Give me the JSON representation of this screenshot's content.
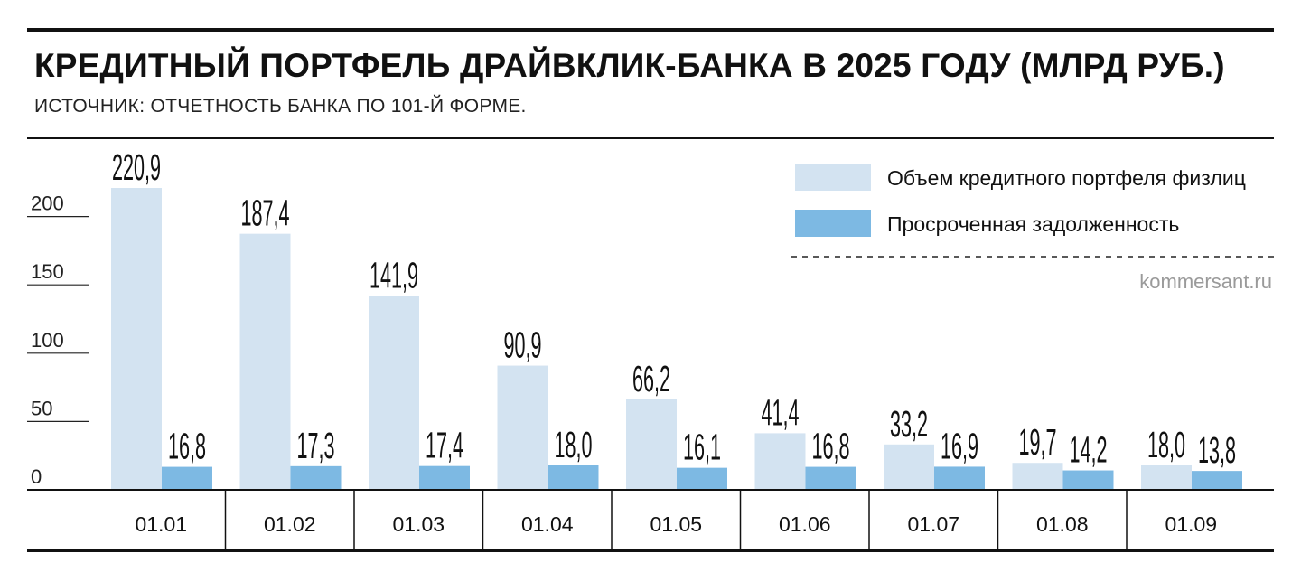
{
  "chart_data": {
    "type": "bar",
    "title": "КРЕДИТНЫЙ ПОРТФЕЛЬ ДРАЙВКЛИК-БАНКА В 2025 ГОДУ (МЛРД РУБ.)",
    "subtitle": "ИСТОЧНИК: ОТЧЕТНОСТЬ БАНКА ПО 101-Й ФОРМЕ.",
    "categories": [
      "01.01",
      "01.02",
      "01.03",
      "01.04",
      "01.05",
      "01.06",
      "01.07",
      "01.08",
      "01.09"
    ],
    "series": [
      {
        "name": "Объем кредитного портфеля физлиц",
        "color": "#d3e3f1",
        "values": [
          220.9,
          187.4,
          141.9,
          90.9,
          66.2,
          41.4,
          33.2,
          19.7,
          18.0
        ],
        "labels": [
          "220,9",
          "187,4",
          "141,9",
          "90,9",
          "66,2",
          "41,4",
          "33,2",
          "19,7",
          "18,0"
        ]
      },
      {
        "name": "Просроченная задолженность",
        "color": "#7db9e3",
        "values": [
          16.8,
          17.3,
          17.4,
          18.0,
          16.1,
          16.8,
          16.9,
          14.2,
          13.8
        ],
        "labels": [
          "16,8",
          "17,3",
          "17,4",
          "18,0",
          "16,1",
          "16,8",
          "16,9",
          "14,2",
          "13,8"
        ]
      }
    ],
    "yticks": [
      0,
      50,
      100,
      150,
      200
    ],
    "ytick_labels": [
      "0",
      "50",
      "100",
      "150",
      "200"
    ],
    "ylim": [
      0,
      220.9
    ],
    "xlabel": "",
    "ylabel": "",
    "legend_position": "top-right",
    "grid": false
  },
  "source_watermark": "kommersant.ru"
}
